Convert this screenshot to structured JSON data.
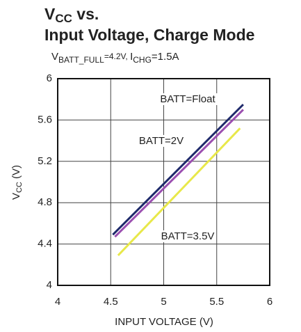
{
  "chart_data": {
    "type": "line",
    "title": {
      "line1_main": "V",
      "line1_sub": "CC",
      "line1_rest": " vs.",
      "line2": "Input Voltage, Charge Mode"
    },
    "subtitle": {
      "a_main": "V",
      "a_sub": "BATT_FULL",
      "a_rest": "=4.2V, ",
      "b_main": "I",
      "b_sub": "CHG",
      "b_rest": "=1.5A"
    },
    "xlabel": "INPUT VOLTAGE (V)",
    "ylabel": {
      "main": "V",
      "sub": "CC",
      "rest": " (V)"
    },
    "xlim": [
      4,
      6
    ],
    "xticks": [
      4,
      4.5,
      5,
      5.5,
      6
    ],
    "ylim": [
      4,
      6
    ],
    "yticks": [
      4,
      4.4,
      4.8,
      5.2,
      5.6,
      6
    ],
    "grid": true,
    "series": [
      {
        "name": "BATT=Float",
        "color": "#1f2a6b",
        "x": [
          4.52,
          5.75
        ],
        "values": [
          4.49,
          5.75
        ]
      },
      {
        "name": "BATT=2V",
        "color": "#9b4fb0",
        "x": [
          4.54,
          5.75
        ],
        "values": [
          4.47,
          5.7
        ]
      },
      {
        "name": "BATT=3.5V",
        "color": "#e8e84a",
        "x": [
          4.57,
          5.72
        ],
        "values": [
          4.29,
          5.52
        ]
      }
    ]
  }
}
